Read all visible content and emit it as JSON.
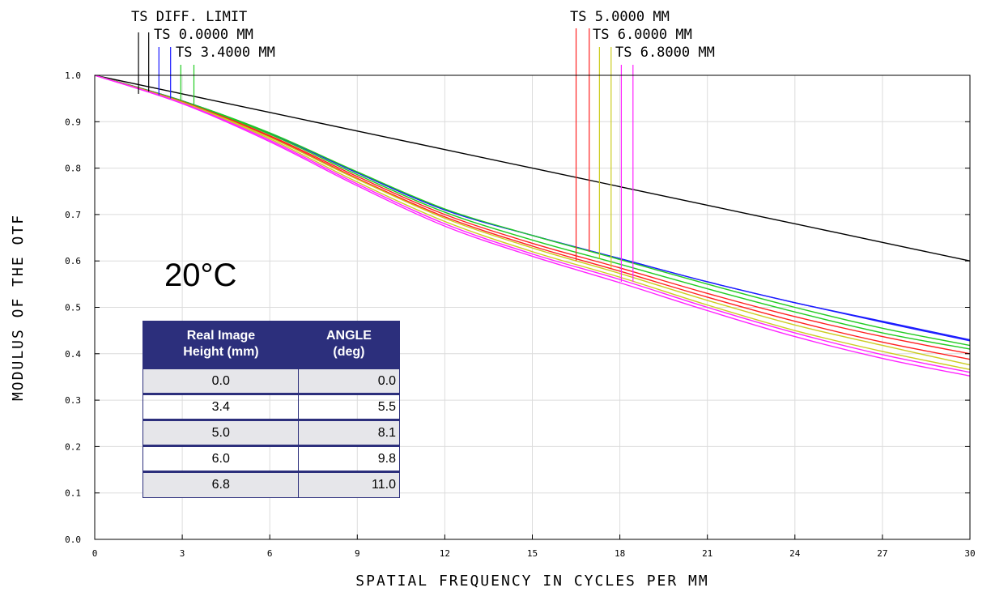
{
  "chart_data": {
    "type": "line",
    "xlabel": "SPATIAL FREQUENCY IN CYCLES PER MM",
    "ylabel": "MODULUS OF THE OTF",
    "xlim": [
      0,
      30
    ],
    "ylim": [
      0,
      1.0
    ],
    "xticks": [
      0,
      3,
      6,
      9,
      12,
      15,
      18,
      21,
      24,
      27,
      30
    ],
    "yticks": [
      0.0,
      0.1,
      0.2,
      0.3,
      0.4,
      0.5,
      0.6,
      0.7,
      0.8,
      0.9,
      1.0
    ],
    "ytick_labels": [
      "0.0",
      "0.1",
      "0.2",
      "0.3",
      "0.4",
      "0.5",
      "0.6",
      "0.7",
      "0.8",
      "0.9",
      "1.0"
    ],
    "grid": true,
    "legend": [
      {
        "label": "TS DIFF. LIMIT",
        "color": "#000000"
      },
      {
        "label": "TS 0.0000 MM",
        "color": "#1a1aff"
      },
      {
        "label": "TS 3.4000 MM",
        "color": "#22cc22"
      },
      {
        "label": "TS 5.0000 MM",
        "color": "#ff2020"
      },
      {
        "label": "TS 6.0000 MM",
        "color": "#cccc22"
      },
      {
        "label": "TS 6.8000 MM",
        "color": "#ff22ff"
      }
    ],
    "series": [
      {
        "color": "#000000",
        "x": [
          0,
          3,
          6,
          9,
          12,
          15,
          18,
          21,
          24,
          27,
          30
        ],
        "y": [
          1.0,
          0.96,
          0.92,
          0.88,
          0.84,
          0.8,
          0.76,
          0.72,
          0.68,
          0.64,
          0.6
        ]
      },
      {
        "color": "#1a1aff",
        "x": [
          0,
          3,
          6,
          9,
          12,
          15,
          18,
          21,
          24,
          27,
          30
        ],
        "y": [
          1.0,
          0.945,
          0.875,
          0.79,
          0.71,
          0.655,
          0.605,
          0.555,
          0.51,
          0.47,
          0.43
        ]
      },
      {
        "color": "#1a1aff",
        "x": [
          0,
          3,
          6,
          9,
          12,
          15,
          18,
          21,
          24,
          27,
          30
        ],
        "y": [
          1.0,
          0.945,
          0.875,
          0.79,
          0.71,
          0.655,
          0.605,
          0.555,
          0.51,
          0.468,
          0.428
        ]
      },
      {
        "color": "#22cc22",
        "x": [
          0,
          3,
          6,
          9,
          12,
          15,
          18,
          21,
          24,
          27,
          30
        ],
        "y": [
          1.0,
          0.945,
          0.876,
          0.792,
          0.712,
          0.655,
          0.603,
          0.55,
          0.5,
          0.455,
          0.418
        ]
      },
      {
        "color": "#22cc22",
        "x": [
          0,
          3,
          6,
          9,
          12,
          15,
          18,
          21,
          24,
          27,
          30
        ],
        "y": [
          1.0,
          0.944,
          0.873,
          0.786,
          0.705,
          0.645,
          0.593,
          0.54,
          0.49,
          0.445,
          0.41
        ]
      },
      {
        "color": "#ff2020",
        "x": [
          0,
          3,
          6,
          9,
          12,
          15,
          18,
          21,
          24,
          27,
          30
        ],
        "y": [
          1.0,
          0.943,
          0.87,
          0.782,
          0.7,
          0.638,
          0.585,
          0.53,
          0.48,
          0.437,
          0.4
        ]
      },
      {
        "color": "#ff2020",
        "x": [
          0,
          3,
          6,
          9,
          12,
          15,
          18,
          21,
          24,
          27,
          30
        ],
        "y": [
          1.0,
          0.943,
          0.868,
          0.778,
          0.695,
          0.632,
          0.578,
          0.522,
          0.47,
          0.425,
          0.388
        ]
      },
      {
        "color": "#cccc22",
        "x": [
          0,
          3,
          6,
          9,
          12,
          15,
          18,
          21,
          24,
          27,
          30
        ],
        "y": [
          1.0,
          0.942,
          0.866,
          0.776,
          0.692,
          0.628,
          0.573,
          0.515,
          0.462,
          0.418,
          0.376
        ]
      },
      {
        "color": "#cccc22",
        "x": [
          0,
          3,
          6,
          9,
          12,
          15,
          18,
          21,
          24,
          27,
          30
        ],
        "y": [
          1.0,
          0.941,
          0.863,
          0.77,
          0.685,
          0.62,
          0.565,
          0.505,
          0.45,
          0.405,
          0.366
        ]
      },
      {
        "color": "#ff22ff",
        "x": [
          0,
          3,
          6,
          9,
          12,
          15,
          18,
          21,
          24,
          27,
          30
        ],
        "y": [
          1.0,
          0.94,
          0.86,
          0.766,
          0.68,
          0.615,
          0.56,
          0.5,
          0.445,
          0.398,
          0.36
        ]
      },
      {
        "color": "#ff22ff",
        "x": [
          0,
          3,
          6,
          9,
          12,
          15,
          18,
          21,
          24,
          27,
          30
        ],
        "y": [
          1.0,
          0.939,
          0.857,
          0.762,
          0.675,
          0.61,
          0.553,
          0.493,
          0.437,
          0.39,
          0.352
        ]
      }
    ],
    "annotation": "20°C"
  },
  "table": {
    "headers": [
      "Real Image\nHeight (mm)",
      "ANGLE\n(deg)"
    ],
    "rows": [
      [
        "0.0",
        "0.0"
      ],
      [
        "3.4",
        "5.5"
      ],
      [
        "5.0",
        "8.1"
      ],
      [
        "6.0",
        "9.8"
      ],
      [
        "6.8",
        "11.0"
      ]
    ]
  }
}
